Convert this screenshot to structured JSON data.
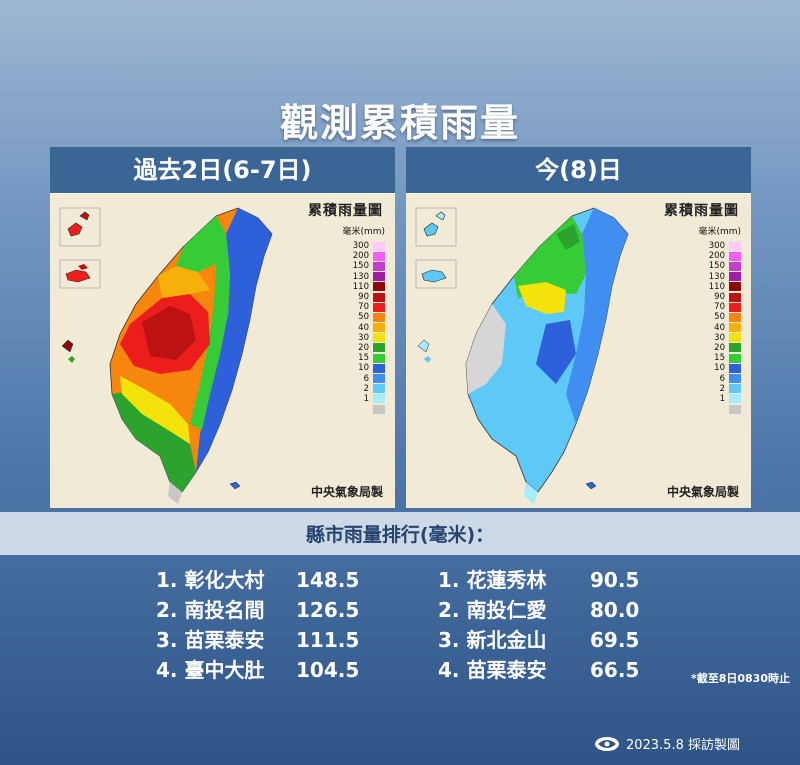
{
  "title": "觀測累積雨量",
  "panels": {
    "left": {
      "header": "過去2日(6-7日)",
      "map_title": "累積雨量圖",
      "legend_unit": "毫米(mm)",
      "credit": "中央氣象局製"
    },
    "right": {
      "header": "今(8)日",
      "map_title": "累積雨量圖",
      "legend_unit": "毫米(mm)",
      "credit": "中央氣象局製"
    }
  },
  "legend": [
    {
      "label": "300",
      "color": "#fdc9fb"
    },
    {
      "label": "200",
      "color": "#f35ef9"
    },
    {
      "label": "150",
      "color": "#c33fcb"
    },
    {
      "label": "130",
      "color": "#9e1ea6"
    },
    {
      "label": "110",
      "color": "#8e0a0a"
    },
    {
      "label": "90",
      "color": "#bd1212"
    },
    {
      "label": "70",
      "color": "#ec1d1d"
    },
    {
      "label": "50",
      "color": "#f7860e"
    },
    {
      "label": "40",
      "color": "#f5b00a"
    },
    {
      "label": "30",
      "color": "#f3e30b"
    },
    {
      "label": "20",
      "color": "#2ca32c"
    },
    {
      "label": "15",
      "color": "#37cb37"
    },
    {
      "label": "10",
      "color": "#2e61d9"
    },
    {
      "label": "6",
      "color": "#3f8ef0"
    },
    {
      "label": "2",
      "color": "#5ec8f7"
    },
    {
      "label": "1",
      "color": "#a6ecfb"
    },
    {
      "label": "",
      "color": "#c7c7c7"
    }
  ],
  "ranking_title": "縣市雨量排行(毫米)：",
  "rank_left": [
    {
      "name": "1. 彰化大村",
      "value": "148.5"
    },
    {
      "name": "2. 南投名間",
      "value": "126.5"
    },
    {
      "name": "3. 苗栗泰安",
      "value": "111.5"
    },
    {
      "name": "4. 臺中大肚",
      "value": "104.5"
    }
  ],
  "rank_right": [
    {
      "name": "1. 花蓮秀林",
      "value": "90.5"
    },
    {
      "name": "2. 南投仁愛",
      "value": "80.0"
    },
    {
      "name": "3. 新北金山",
      "value": "69.5"
    },
    {
      "name": "4. 苗栗泰安",
      "value": "66.5"
    }
  ],
  "note": "*截至8日0830時止",
  "credit": "2023.5.8 採訪製圖",
  "colors": {
    "header_bg": "#3a6595",
    "map_bg": "#f1ead7",
    "rank_title": "#25456f"
  }
}
